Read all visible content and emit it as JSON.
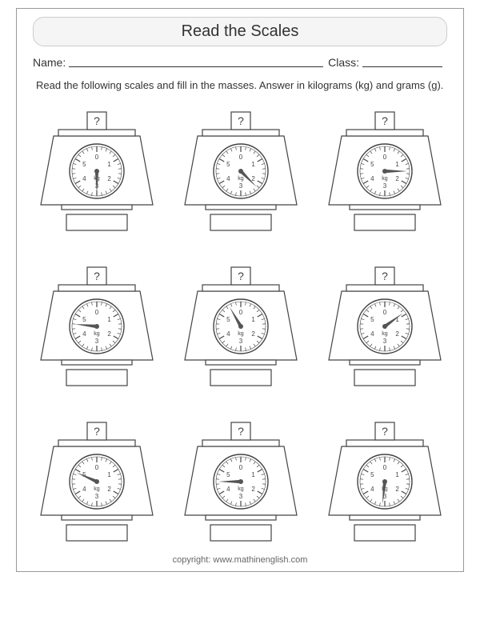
{
  "title": "Read the Scales",
  "name_label": "Name:",
  "class_label": "Class:",
  "instructions": "Read the following scales and fill in the masses. Answer in kilograms (kg) and grams (g).",
  "copyright": "copyright:   www.mathinenglish.com",
  "dial": {
    "unit_label": "kg",
    "tick_labels": [
      "0",
      "1",
      "2",
      "3",
      "4",
      "5"
    ],
    "major_count": 6,
    "minor_per_major": 4,
    "stroke": "#444",
    "fill": "#ffffff",
    "needle_color": "#555",
    "label_fontsize": 8,
    "unit_fontsize": 7,
    "question_mark": "?"
  },
  "scales": [
    {
      "value": 3.0,
      "answer_shown": ""
    },
    {
      "value": 2.25,
      "answer_shown": ""
    },
    {
      "value": 1.5,
      "answer_shown": ""
    },
    {
      "value": 4.6,
      "answer_shown": ""
    },
    {
      "value": 5.5,
      "answer_shown": ""
    },
    {
      "value": 0.9,
      "answer_shown": ""
    },
    {
      "value": 4.9,
      "answer_shown": ""
    },
    {
      "value": 4.5,
      "answer_shown": ""
    },
    {
      "value": 3.1,
      "answer_shown": ""
    }
  ]
}
